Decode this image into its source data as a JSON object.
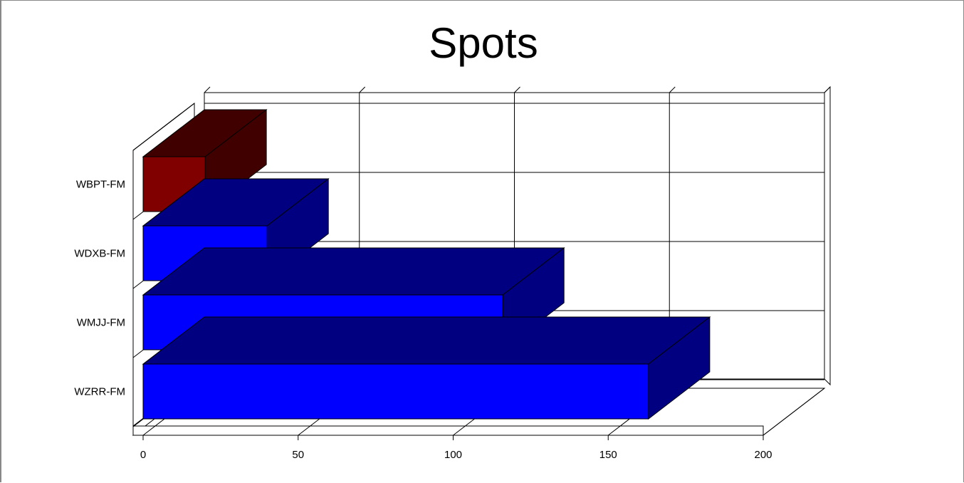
{
  "chart_data": {
    "type": "bar",
    "orientation": "horizontal",
    "three_d": true,
    "title": "Spots",
    "xlabel": "",
    "ylabel": "",
    "categories": [
      "WBPT-FM",
      "WDXB-FM",
      "WMJJ-FM",
      "WZRR-FM"
    ],
    "values": [
      20,
      40,
      116,
      163
    ],
    "bar_colors": [
      "#800000",
      "#0000FF",
      "#0000FF",
      "#0000FF"
    ],
    "xlim": [
      0,
      200
    ],
    "x_ticks": [
      0,
      50,
      100,
      150,
      200
    ],
    "grid": true,
    "legend": "none"
  }
}
